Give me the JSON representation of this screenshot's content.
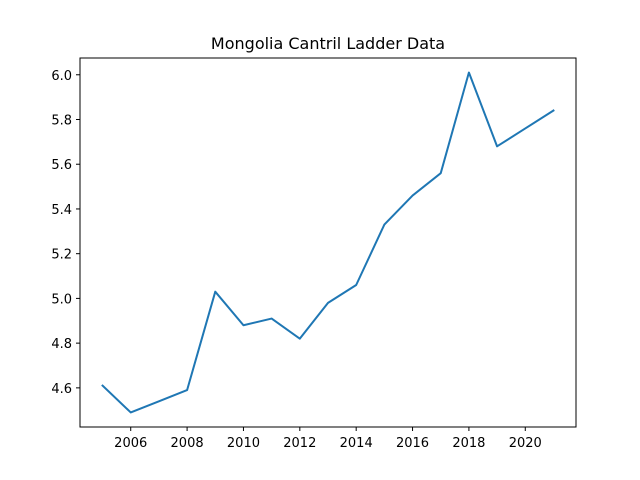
{
  "chart_data": {
    "type": "line",
    "title": "Mongolia Cantril Ladder Data",
    "xlabel": "",
    "ylabel": "",
    "x": [
      2005,
      2006,
      2007,
      2008,
      2009,
      2010,
      2011,
      2012,
      2013,
      2014,
      2015,
      2016,
      2017,
      2018,
      2019,
      2020,
      2021
    ],
    "series": [
      {
        "values": [
          4.61,
          4.49,
          4.54,
          4.59,
          5.03,
          4.88,
          4.91,
          4.82,
          4.98,
          5.06,
          5.33,
          5.46,
          5.56,
          6.01,
          5.68,
          5.76,
          5.84
        ]
      }
    ],
    "xlim": [
      2004.2,
      2021.8
    ],
    "ylim": [
      4.425,
      6.075
    ],
    "xticks": [
      2006,
      2008,
      2010,
      2012,
      2014,
      2016,
      2018,
      2020
    ],
    "xtick_labels": [
      "2006",
      "2008",
      "2010",
      "2012",
      "2014",
      "2016",
      "2018",
      "2020"
    ],
    "yticks": [
      4.6,
      4.8,
      5.0,
      5.2,
      5.4,
      5.6,
      5.8,
      6.0
    ],
    "ytick_labels": [
      "4.6",
      "4.8",
      "5.0",
      "5.2",
      "5.4",
      "5.6",
      "5.8",
      "6.0"
    ],
    "grid": false,
    "line_color": "#1f77b4"
  }
}
